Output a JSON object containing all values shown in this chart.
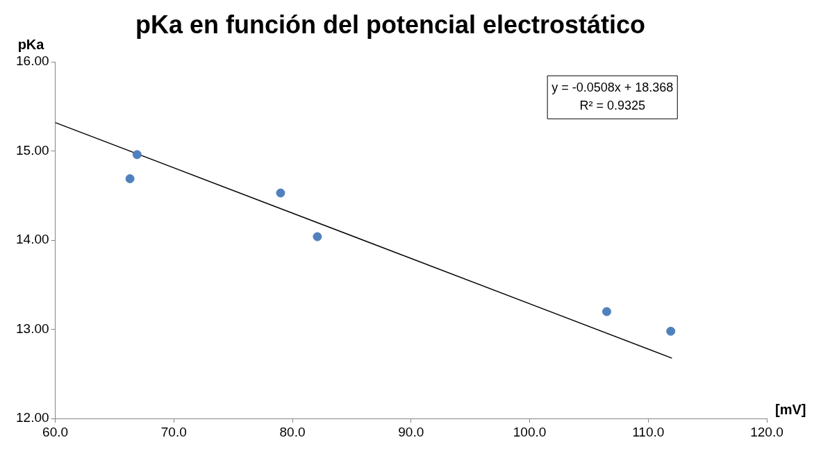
{
  "chart_data": {
    "type": "scatter",
    "title": "pKa en función del potencial electrostático",
    "xlabel": "[mV]",
    "ylabel": "pKa",
    "series": [
      {
        "marker": "circle",
        "color": "#4f81bd",
        "x": [
          66.3,
          66.9,
          79.0,
          82.1,
          106.5,
          111.9
        ],
        "values": [
          14.69,
          14.96,
          14.53,
          14.04,
          13.2,
          12.98
        ]
      },
      {
        "type": "line",
        "marker": "none",
        "color": "#000000",
        "x": [
          60,
          112
        ],
        "values": [
          15.32,
          12.678
        ]
      }
    ],
    "annotations": [
      "y = -0.0508x + 18.368",
      "R² = 0.9325"
    ],
    "xlim": [
      60,
      120
    ],
    "xticks": [
      {
        "value": 60,
        "label": "60.0"
      },
      {
        "value": 70,
        "label": "70.0"
      },
      {
        "value": 80,
        "label": "80.0"
      },
      {
        "value": 90,
        "label": "90.0"
      },
      {
        "value": 100,
        "label": "100.0"
      },
      {
        "value": 110,
        "label": "110.0"
      },
      {
        "value": 120,
        "label": "120.0"
      }
    ],
    "ylim": [
      12,
      16
    ],
    "yticks": [
      {
        "value": 12,
        "label": "12.00"
      },
      {
        "value": 13,
        "label": "13.00"
      },
      {
        "value": 14,
        "label": "14.00"
      },
      {
        "value": 15,
        "label": "15.00"
      },
      {
        "value": 16,
        "label": "16.00"
      }
    ],
    "grid": false,
    "legend": false
  }
}
